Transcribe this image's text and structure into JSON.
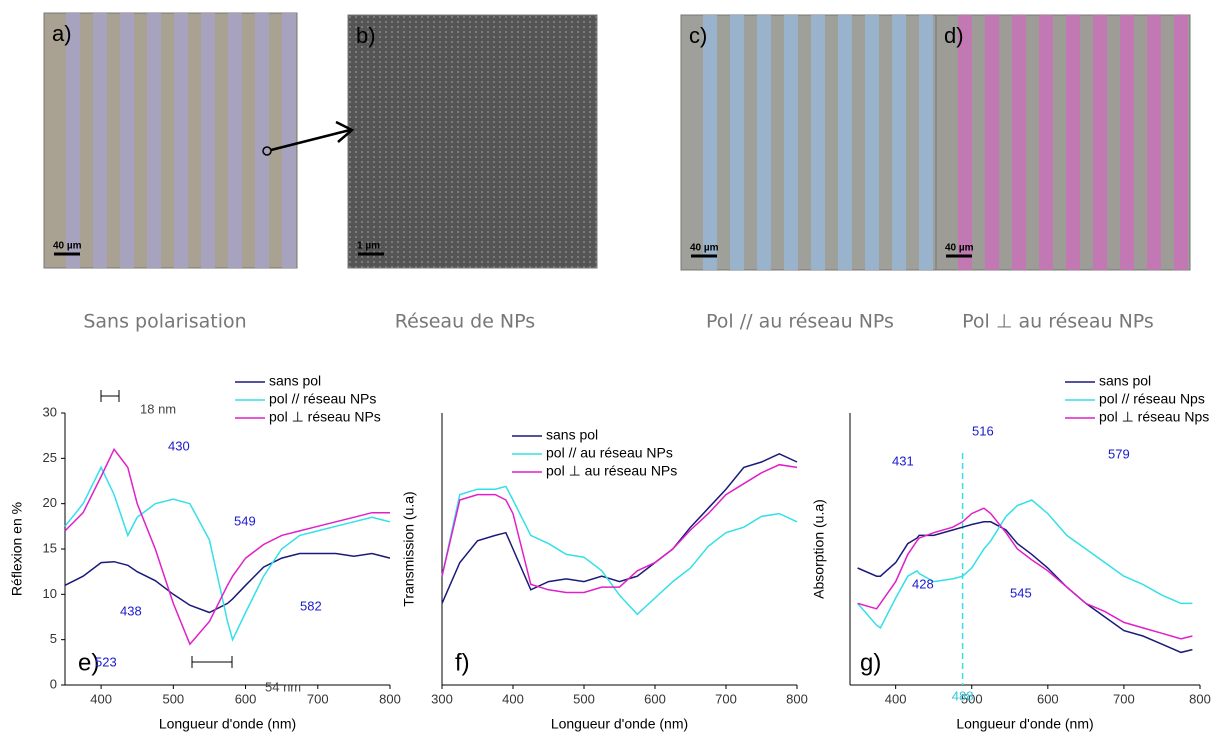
{
  "panels": [
    {
      "label": "a)",
      "scale": "40 µm",
      "caption": "Sans polarisation"
    },
    {
      "label": "b)",
      "scale": "1 µm",
      "caption": "Réseau de NPs"
    },
    {
      "label": "c)",
      "scale": "40 µm",
      "caption": "Pol // au réseau NPs"
    },
    {
      "label": "d)",
      "scale": "40 µm",
      "caption": "Pol ⊥ au réseau NPs"
    }
  ],
  "chart_data": [
    {
      "type": "line",
      "panel": "e)",
      "xlabel": "Longueur d'onde (nm)",
      "ylabel": "Réflexion en %",
      "xlim": [
        350,
        800
      ],
      "xticks": [
        400,
        500,
        600,
        700,
        800
      ],
      "ylim": [
        0,
        30
      ],
      "yticks": [
        0,
        5,
        10,
        15,
        20,
        25,
        30
      ],
      "x": [
        350,
        375,
        400,
        418,
        437,
        450,
        475,
        500,
        523,
        550,
        575,
        582,
        600,
        625,
        650,
        675,
        700,
        725,
        750,
        775,
        800
      ],
      "series": [
        {
          "name": "sans pol",
          "color": "#1a1a7a",
          "values": [
            11,
            12,
            13.5,
            13.6,
            13.2,
            12.5,
            11.5,
            10,
            8.8,
            8,
            9,
            9.5,
            11,
            13,
            14,
            14.5,
            14.5,
            14.5,
            14.2,
            14.5,
            14
          ]
        },
        {
          "name": "pol // réseau NPs",
          "color": "#33e0e8",
          "values": [
            17.5,
            20,
            24,
            21,
            16.5,
            18.5,
            20,
            20.5,
            20,
            16,
            7,
            5,
            8,
            12,
            15,
            16.5,
            17,
            17.5,
            18,
            18.5,
            18
          ]
        },
        {
          "name": "pol ⊥ réseau NPs",
          "color": "#e020c8",
          "values": [
            17,
            19,
            23,
            26,
            24,
            20,
            15,
            9,
            4.5,
            7,
            11,
            12,
            14,
            15.5,
            16.5,
            17,
            17.5,
            18,
            18.5,
            19,
            19
          ]
        }
      ],
      "annotations": [
        "18 nm",
        "430",
        "549",
        "438",
        "582",
        "523",
        "54 nm"
      ]
    },
    {
      "type": "line",
      "panel": "f)",
      "xlabel": "Longueur d'onde (nm)",
      "ylabel": "Transmission (u.a)",
      "xlim": [
        300,
        800
      ],
      "xticks": [
        300,
        400,
        500,
        600,
        700,
        800
      ],
      "ylim": [
        0,
        10
      ],
      "x": [
        300,
        325,
        350,
        375,
        390,
        400,
        425,
        450,
        475,
        500,
        525,
        550,
        575,
        600,
        625,
        650,
        675,
        700,
        725,
        750,
        775,
        800
      ],
      "series": [
        {
          "name": "sans pol",
          "color": "#1a1a7a",
          "values": [
            3,
            4.5,
            5.3,
            5.5,
            5.6,
            5,
            3.5,
            3.8,
            3.9,
            3.8,
            4,
            3.8,
            4,
            4.5,
            5,
            5.8,
            6.5,
            7.2,
            8,
            8.2,
            8.5,
            8.2
          ]
        },
        {
          "name": "pol // au réseau NPs",
          "color": "#33e0e8",
          "values": [
            4,
            7,
            7.2,
            7.2,
            7.3,
            6.8,
            5.5,
            5.2,
            4.8,
            4.7,
            4.2,
            3.3,
            2.6,
            3.2,
            3.8,
            4.3,
            5.1,
            5.6,
            5.8,
            6.2,
            6.3,
            6
          ]
        },
        {
          "name": "pol ⊥ au réseau NPs",
          "color": "#e020c8",
          "values": [
            4,
            6.8,
            7,
            7,
            6.8,
            6.3,
            3.7,
            3.5,
            3.4,
            3.4,
            3.6,
            3.6,
            4.2,
            4.5,
            5,
            5.7,
            6.3,
            7,
            7.4,
            7.8,
            8.1,
            8
          ]
        }
      ],
      "annotations": []
    },
    {
      "type": "line",
      "panel": "g)",
      "xlabel": "Longueur d'onde (nm)",
      "ylabel": "Absorption (u.a)",
      "xlim": [
        340,
        800
      ],
      "xticks": [
        400,
        500,
        600,
        700,
        800
      ],
      "ylim": [
        0,
        10
      ],
      "vline": 488,
      "x": [
        350,
        375,
        380,
        400,
        416,
        428,
        431,
        450,
        475,
        488,
        500,
        516,
        525,
        545,
        560,
        579,
        600,
        625,
        650,
        675,
        700,
        725,
        750,
        775,
        790
      ],
      "series": [
        {
          "name": "sans pol",
          "color": "#1a1a7a",
          "values": [
            4.3,
            4,
            4,
            4.5,
            5.2,
            5.4,
            5.5,
            5.5,
            5.7,
            5.8,
            5.9,
            6,
            6,
            5.7,
            5.2,
            4.8,
            4.3,
            3.6,
            3,
            2.5,
            2,
            1.8,
            1.5,
            1.2,
            1.3
          ]
        },
        {
          "name": "pol // réseau Nps",
          "color": "#33e0e8",
          "values": [
            3,
            2.2,
            2.1,
            3.2,
            4,
            4.2,
            4.1,
            3.8,
            3.9,
            4,
            4.3,
            5,
            5.3,
            6.2,
            6.6,
            6.8,
            6.3,
            5.5,
            5,
            4.5,
            4,
            3.7,
            3.3,
            3,
            3
          ]
        },
        {
          "name": "pol ⊥ réseau Nps",
          "color": "#e020c8",
          "values": [
            3,
            2.8,
            3,
            3.8,
            4.8,
            5.3,
            5.4,
            5.6,
            5.8,
            6,
            6.3,
            6.5,
            6.3,
            5.6,
            5,
            4.6,
            4.2,
            3.6,
            3,
            2.7,
            2.3,
            2.1,
            1.9,
            1.7,
            1.8
          ]
        }
      ],
      "annotations": [
        "431",
        "516",
        "579",
        "428",
        "545"
      ]
    }
  ]
}
